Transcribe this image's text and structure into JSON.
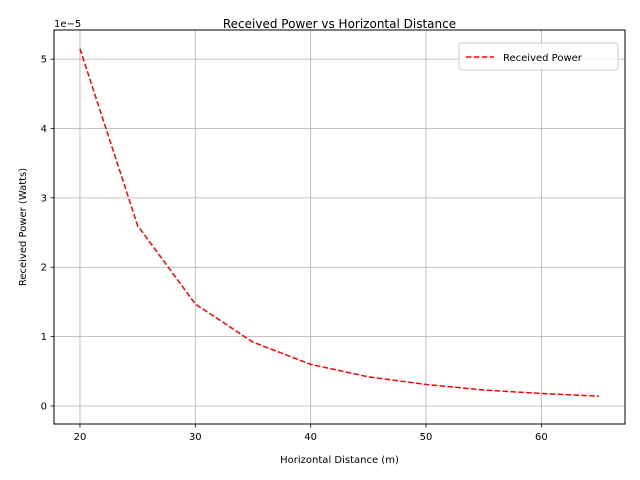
{
  "chart_data": {
    "type": "line",
    "title": "Received Power vs Horizontal Distance",
    "xlabel": "Horizontal Distance (m)",
    "ylabel": "Received Power (Watts)",
    "offset_label": "1e−5",
    "xlim": [
      17.75,
      67.25
    ],
    "ylim": [
      -2.6e-06,
      5.42e-05
    ],
    "x_ticks": [
      20,
      30,
      40,
      50,
      60
    ],
    "y_ticks": [
      0,
      1e-05,
      2e-05,
      3e-05,
      4e-05,
      5e-05
    ],
    "y_tick_labels": [
      "0",
      "1",
      "2",
      "3",
      "4",
      "5"
    ],
    "grid": true,
    "legend_position": "top-right",
    "series": [
      {
        "name": "Received Power",
        "color": "#ff0000",
        "line_style": "dashed",
        "x": [
          20,
          25,
          30,
          35,
          40,
          45,
          50,
          55,
          60,
          65
        ],
        "y": [
          5.15e-05,
          2.6e-05,
          1.47e-05,
          9.2e-06,
          6e-06,
          4.2e-06,
          3.1e-06,
          2.3e-06,
          1.8e-06,
          1.4e-06
        ]
      }
    ]
  }
}
